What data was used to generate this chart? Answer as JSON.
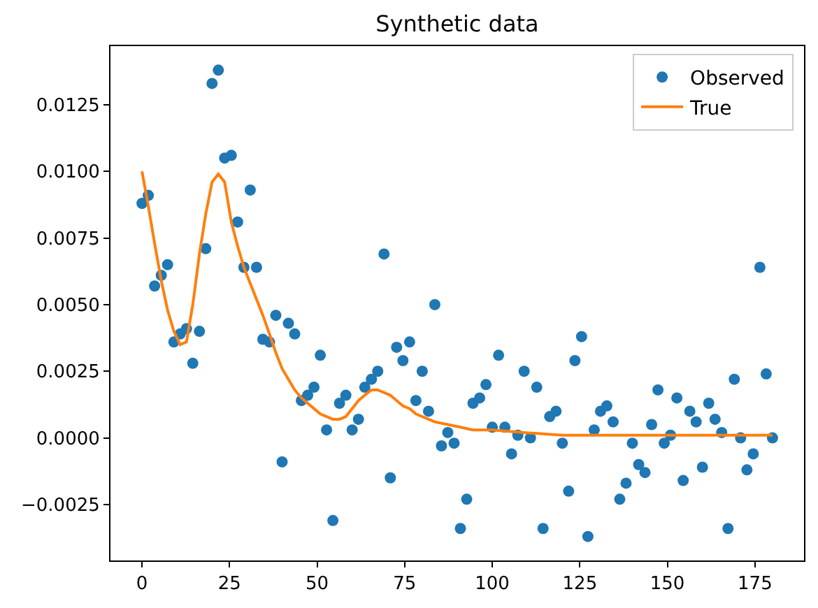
{
  "chart_data": {
    "type": "scatter",
    "title": "Synthetic data",
    "xlim": [
      -9,
      189
    ],
    "ylim": [
      -0.0046,
      0.0147
    ],
    "xticks": [
      0,
      25,
      50,
      75,
      100,
      125,
      150,
      175
    ],
    "yticks": [
      {
        "value": -0.0025,
        "label": "−0.0025"
      },
      {
        "value": 0,
        "label": "0.0000"
      },
      {
        "value": 0.0025,
        "label": "0.0025"
      },
      {
        "value": 0.005,
        "label": "0.0050"
      },
      {
        "value": 0.0075,
        "label": "0.0075"
      },
      {
        "value": 0.01,
        "label": "0.0100"
      },
      {
        "value": 0.0125,
        "label": "0.0125"
      }
    ],
    "legend": "top right",
    "series": [
      {
        "name": "Observed",
        "marker": "circle",
        "color": "#1f77b4",
        "x": [
          0,
          1.8,
          3.6,
          5.5,
          7.3,
          9.1,
          10.9,
          12.7,
          14.5,
          16.4,
          18.2,
          20,
          21.8,
          23.6,
          25.5,
          27.3,
          29.1,
          30.9,
          32.7,
          34.5,
          36.4,
          38.2,
          40,
          41.8,
          43.6,
          45.5,
          47.3,
          49.1,
          50.9,
          52.7,
          54.5,
          56.4,
          58.2,
          60,
          61.8,
          63.6,
          65.5,
          67.3,
          69.1,
          70.9,
          72.7,
          74.5,
          76.4,
          78.2,
          80,
          81.8,
          83.6,
          85.5,
          87.3,
          89.1,
          90.9,
          92.7,
          94.5,
          96.4,
          98.2,
          100,
          101.8,
          103.6,
          105.5,
          107.3,
          109.1,
          110.9,
          112.7,
          114.5,
          116.4,
          118.2,
          120,
          121.8,
          123.6,
          125.5,
          127.3,
          129.1,
          130.9,
          132.7,
          134.5,
          136.4,
          138.2,
          140,
          141.8,
          143.6,
          145.5,
          147.3,
          149.1,
          150.9,
          152.7,
          154.5,
          156.4,
          158.2,
          160,
          161.8,
          163.6,
          165.5,
          167.3,
          169.1,
          170.9,
          172.7,
          174.5,
          176.4,
          178.2,
          180
        ],
        "values": [
          0.0088,
          0.0091,
          0.0057,
          0.0061,
          0.0065,
          0.0036,
          0.0039,
          0.0041,
          0.0028,
          0.004,
          0.0071,
          0.0133,
          0.0138,
          0.0105,
          0.0106,
          0.0081,
          0.0064,
          0.0093,
          0.0064,
          0.0037,
          0.0036,
          0.0046,
          -0.0009,
          0.0043,
          0.0039,
          0.0014,
          0.0016,
          0.0019,
          0.0031,
          0.0003,
          -0.0031,
          0.0013,
          0.0016,
          0.0003,
          0.0007,
          0.0019,
          0.0022,
          0.0025,
          0.0069,
          -0.0015,
          0.0034,
          0.0029,
          0.0036,
          0.0014,
          0.0025,
          0.001,
          0.005,
          -0.0003,
          0.0002,
          -0.0002,
          -0.0034,
          -0.0023,
          0.0013,
          0.0015,
          0.002,
          0.0004,
          0.0031,
          0.0004,
          -0.0006,
          0.0001,
          0.0025,
          0,
          0.0019,
          -0.0034,
          0.0008,
          0.001,
          -0.0002,
          -0.002,
          0.0029,
          0.0038,
          -0.0037,
          0.0003,
          0.001,
          0.0012,
          0.0006,
          -0.0023,
          -0.0017,
          -0.0002,
          -0.001,
          -0.0013,
          0.0005,
          0.0018,
          -0.0002,
          0.0001,
          0.0015,
          -0.0016,
          0.001,
          0.0006,
          -0.0011,
          0.0013,
          0.0007,
          0.0002,
          -0.0034,
          0.0022,
          0,
          -0.0012,
          -0.0006,
          0.0064,
          0.0024,
          0
        ]
      },
      {
        "name": "True",
        "type": "line",
        "line_style": "solid",
        "color": "#ff7f0e",
        "x": [
          0,
          1.8,
          3.6,
          5.5,
          7.3,
          9.1,
          10.9,
          12.7,
          14.5,
          16.4,
          18.2,
          20,
          21.8,
          23.6,
          25.5,
          27.3,
          29.1,
          30.9,
          32.7,
          34.5,
          36.4,
          38.2,
          40,
          41.8,
          43.6,
          45.5,
          47.3,
          49.1,
          50.9,
          52.7,
          54.5,
          56.4,
          58.2,
          60,
          61.8,
          63.6,
          65.5,
          67.3,
          69.1,
          70.9,
          72.7,
          74.5,
          76.4,
          78.2,
          80,
          83.6,
          87.3,
          90.9,
          94.5,
          100,
          109.1,
          120,
          140,
          160,
          180
        ],
        "values": [
          0.01,
          0.0087,
          0.0073,
          0.0059,
          0.0048,
          0.004,
          0.0035,
          0.0036,
          0.005,
          0.0069,
          0.0084,
          0.0096,
          0.0099,
          0.0096,
          0.0081,
          0.0072,
          0.0064,
          0.0058,
          0.0052,
          0.0046,
          0.0039,
          0.0032,
          0.0026,
          0.0022,
          0.0018,
          0.0015,
          0.0013,
          0.0011,
          0.0009,
          0.0008,
          0.0007,
          0.0007,
          0.0008,
          0.0011,
          0.0014,
          0.0016,
          0.0018,
          0.0018,
          0.0017,
          0.0016,
          0.0014,
          0.0012,
          0.0011,
          0.0009,
          0.0008,
          0.0006,
          0.0005,
          0.0004,
          0.0003,
          0.0003,
          0.0002,
          0.0001,
          0.0001,
          0.0001,
          0.0001
        ]
      }
    ]
  }
}
